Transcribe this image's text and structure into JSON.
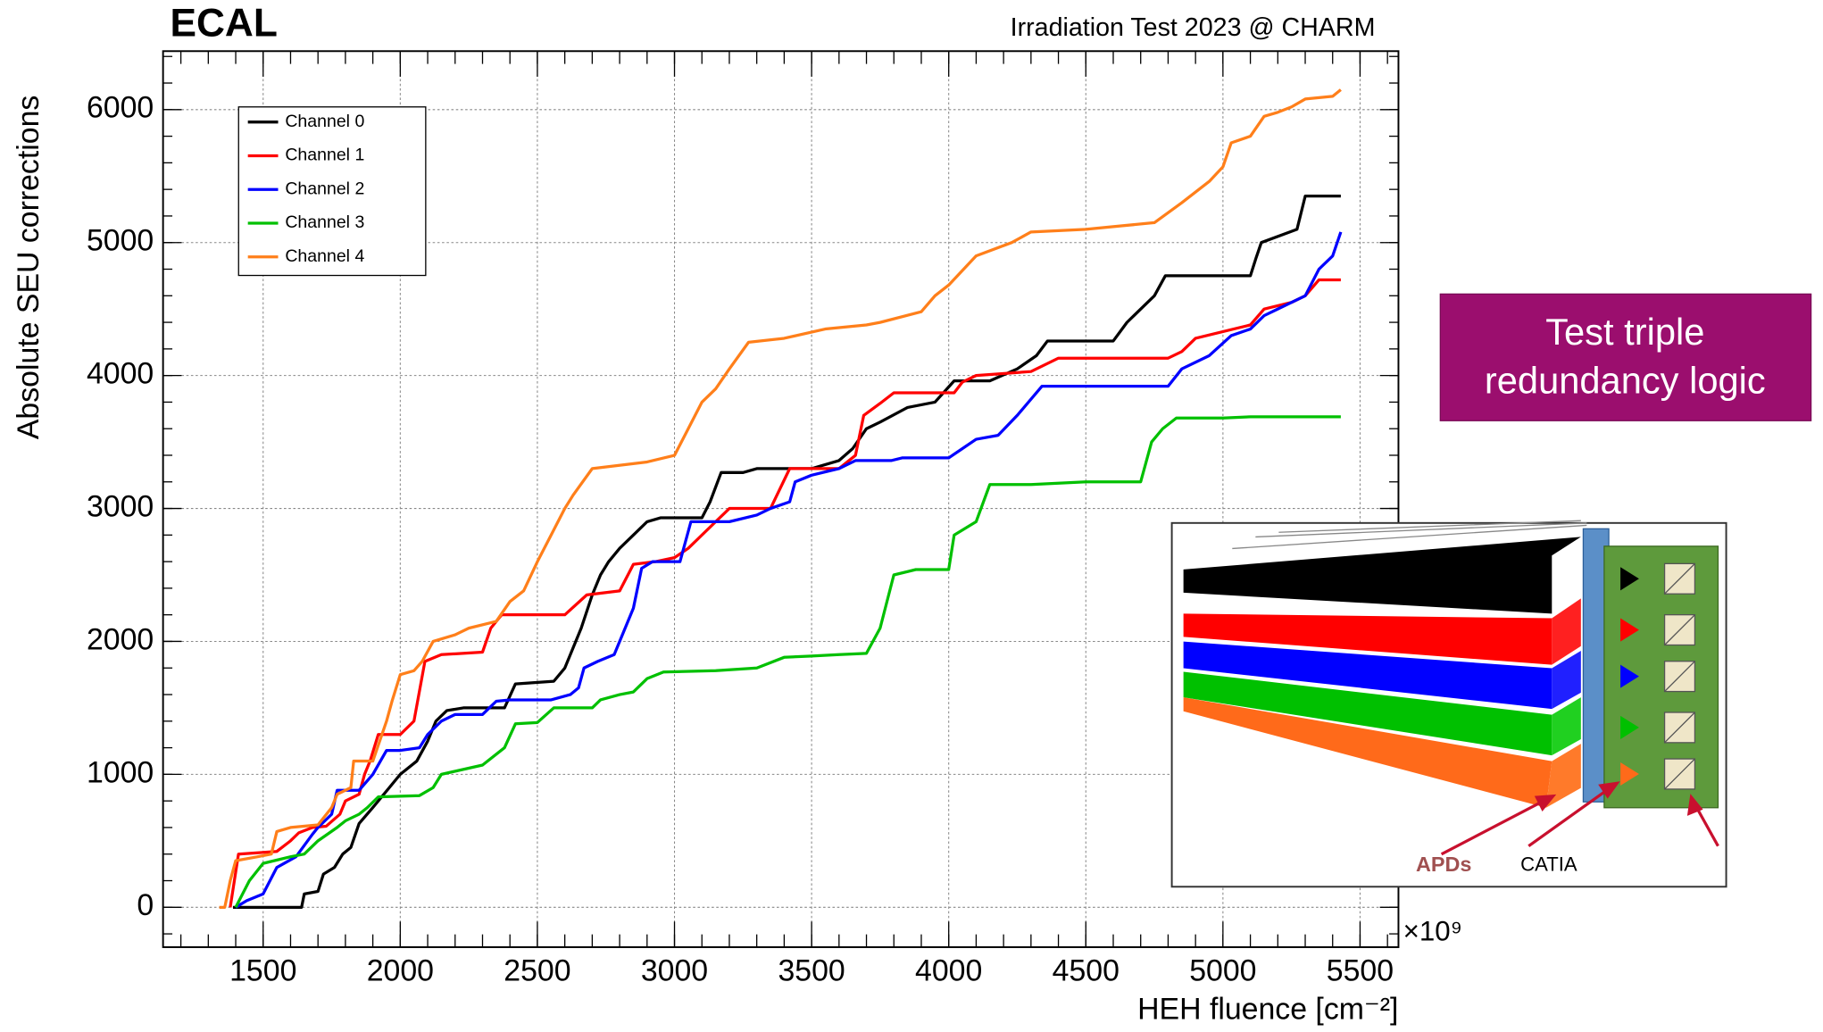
{
  "chart_data": {
    "type": "line",
    "title": "ECAL",
    "subtitle": "Irradiation Test 2023 @ CHARM",
    "x_label": "HEH fluence [cm⁻²]",
    "x_multiplier": "×10⁹",
    "y_label": "Absolute SEU corrections",
    "xlim": [
      1135,
      5640
    ],
    "xticks": [
      1500,
      2000,
      2500,
      3000,
      3500,
      4000,
      4500,
      5000,
      5500
    ],
    "ylim": [
      -300,
      6440
    ],
    "yticks": [
      0,
      1000,
      2000,
      3000,
      4000,
      5000,
      6000
    ],
    "grid": true,
    "legend": "upper left",
    "series": [
      {
        "name": "Channel 0",
        "color": "#000000",
        "x": [
          1390,
          1640,
          1650,
          1700,
          1720,
          1760,
          1790,
          1820,
          1850,
          1900,
          1960,
          2000,
          2060,
          2100,
          2130,
          2170,
          2230,
          2380,
          2420,
          2560,
          2600,
          2640,
          2660,
          2700,
          2730,
          2760,
          2800,
          2850,
          2900,
          2950,
          3100,
          3130,
          3170,
          3250,
          3300,
          3500,
          3600,
          3650,
          3700,
          3750,
          3850,
          3950,
          4020,
          4150,
          4250,
          4320,
          4360,
          4600,
          4650,
          4700,
          4750,
          4790,
          5100,
          5120,
          5140,
          5270,
          5300,
          5430
        ],
        "values": [
          0,
          0,
          100,
          120,
          250,
          300,
          400,
          450,
          630,
          750,
          900,
          1000,
          1100,
          1250,
          1400,
          1480,
          1500,
          1500,
          1680,
          1700,
          1800,
          2000,
          2100,
          2350,
          2500,
          2600,
          2700,
          2800,
          2900,
          2930,
          2930,
          3050,
          3270,
          3270,
          3300,
          3300,
          3360,
          3450,
          3600,
          3650,
          3760,
          3800,
          3960,
          3960,
          4050,
          4150,
          4260,
          4260,
          4400,
          4500,
          4600,
          4750,
          4750,
          4880,
          5000,
          5100,
          5350,
          5350
        ]
      },
      {
        "name": "Channel 1",
        "color": "#ff0000",
        "x": [
          1380,
          1410,
          1550,
          1600,
          1630,
          1680,
          1730,
          1780,
          1800,
          1850,
          1870,
          1890,
          1920,
          2000,
          2050,
          2090,
          2150,
          2300,
          2330,
          2370,
          2600,
          2680,
          2800,
          2850,
          2930,
          3000,
          3050,
          3150,
          3200,
          3350,
          3420,
          3600,
          3660,
          3690,
          3750,
          3800,
          4020,
          4050,
          4100,
          4300,
          4400,
          4800,
          4850,
          4900,
          5100,
          5150,
          5250,
          5300,
          5350,
          5430
        ],
        "values": [
          0,
          400,
          420,
          500,
          560,
          600,
          610,
          700,
          800,
          850,
          1000,
          1100,
          1300,
          1300,
          1400,
          1850,
          1900,
          1920,
          2100,
          2200,
          2200,
          2350,
          2380,
          2580,
          2600,
          2630,
          2700,
          2900,
          3000,
          3000,
          3300,
          3300,
          3400,
          3700,
          3790,
          3870,
          3870,
          3950,
          4000,
          4030,
          4130,
          4130,
          4180,
          4280,
          4380,
          4500,
          4550,
          4600,
          4720,
          4720
        ]
      },
      {
        "name": "Channel 2",
        "color": "#0000ff",
        "x": [
          1400,
          1440,
          1500,
          1550,
          1620,
          1680,
          1700,
          1750,
          1770,
          1850,
          1900,
          1950,
          2000,
          2070,
          2100,
          2150,
          2200,
          2300,
          2350,
          2400,
          2550,
          2620,
          2650,
          2670,
          2720,
          2780,
          2850,
          2880,
          2920,
          3020,
          3060,
          3200,
          3300,
          3350,
          3420,
          3440,
          3500,
          3600,
          3660,
          3790,
          3830,
          4000,
          4050,
          4100,
          4180,
          4250,
          4340,
          4800,
          4850,
          4950,
          5030,
          5100,
          5150,
          5200,
          5300,
          5350,
          5400,
          5430
        ],
        "values": [
          0,
          50,
          100,
          300,
          380,
          550,
          600,
          700,
          880,
          880,
          1000,
          1180,
          1180,
          1200,
          1300,
          1400,
          1450,
          1450,
          1550,
          1560,
          1560,
          1600,
          1650,
          1800,
          1850,
          1900,
          2250,
          2550,
          2600,
          2600,
          2900,
          2900,
          2950,
          3000,
          3050,
          3200,
          3250,
          3300,
          3360,
          3360,
          3380,
          3380,
          3450,
          3520,
          3550,
          3700,
          3920,
          3920,
          4050,
          4150,
          4300,
          4350,
          4450,
          4500,
          4600,
          4800,
          4900,
          5080
        ]
      },
      {
        "name": "Channel 3",
        "color": "#00c000",
        "x": [
          1400,
          1450,
          1500,
          1600,
          1650,
          1700,
          1770,
          1800,
          1850,
          1880,
          1920,
          2070,
          2120,
          2150,
          2300,
          2380,
          2420,
          2500,
          2560,
          2700,
          2730,
          2800,
          2850,
          2900,
          2960,
          3150,
          3300,
          3400,
          3500,
          3600,
          3700,
          3750,
          3800,
          3880,
          4000,
          4020,
          4100,
          4150,
          4300,
          4500,
          4700,
          4740,
          4780,
          4830,
          5000,
          5100,
          5430
        ],
        "values": [
          0,
          200,
          330,
          380,
          400,
          500,
          600,
          650,
          700,
          750,
          830,
          840,
          900,
          1000,
          1070,
          1200,
          1380,
          1390,
          1500,
          1500,
          1560,
          1600,
          1620,
          1720,
          1770,
          1780,
          1800,
          1880,
          1890,
          1900,
          1910,
          2100,
          2500,
          2540,
          2540,
          2800,
          2900,
          3180,
          3180,
          3200,
          3200,
          3500,
          3600,
          3680,
          3680,
          3690,
          3690
        ]
      },
      {
        "name": "Channel 4",
        "color": "#ff7f1a",
        "x": [
          1340,
          1360,
          1380,
          1400,
          1480,
          1530,
          1550,
          1600,
          1700,
          1750,
          1770,
          1820,
          1830,
          1900,
          1950,
          1970,
          2000,
          2050,
          2080,
          2120,
          2200,
          2250,
          2350,
          2400,
          2450,
          2500,
          2550,
          2600,
          2630,
          2700,
          2900,
          3000,
          3050,
          3100,
          3150,
          3200,
          3270,
          3400,
          3550,
          3700,
          3750,
          3900,
          3950,
          4000,
          4100,
          4230,
          4300,
          4500,
          4750,
          4850,
          4950,
          5000,
          5030,
          5100,
          5150,
          5200,
          5250,
          5300,
          5400,
          5430
        ],
        "values": [
          0,
          0,
          200,
          350,
          380,
          400,
          570,
          600,
          620,
          750,
          850,
          900,
          1100,
          1100,
          1400,
          1550,
          1750,
          1780,
          1850,
          2000,
          2050,
          2100,
          2150,
          2300,
          2380,
          2600,
          2800,
          3000,
          3100,
          3300,
          3350,
          3400,
          3600,
          3800,
          3900,
          4050,
          4250,
          4280,
          4350,
          4380,
          4400,
          4480,
          4600,
          4680,
          4900,
          5000,
          5080,
          5100,
          5150,
          5300,
          5460,
          5570,
          5750,
          5800,
          5950,
          5980,
          6020,
          6080,
          6100,
          6150
        ]
      }
    ]
  },
  "callout": {
    "lines": [
      "Test triple",
      "redundancy logic"
    ]
  },
  "inset": {
    "labels": [
      "APDs",
      "CATIA"
    ]
  }
}
